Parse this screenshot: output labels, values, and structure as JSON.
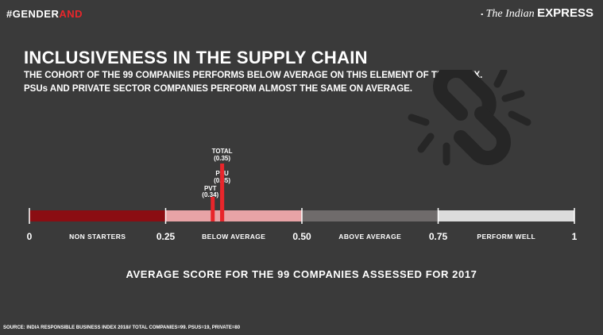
{
  "header": {
    "hashtag_white": "#GENDER",
    "hashtag_red": "AND",
    "brand_prefix": "The",
    "brand_italic": "The Indian",
    "brand_bold": "EXPRESS"
  },
  "title": "INCLUSIVENESS IN THE SUPPLY CHAIN",
  "subtitle_line1": "THE COHORT OF THE 99 COMPANIES PERFORMS BELOW AVERAGE ON THIS ELEMENT OF THE INDEX.",
  "subtitle_line2": "PSUs AND PRIVATE SECTOR COMPANIES PERFORM ALMOST THE SAME ON AVERAGE.",
  "icon": "broken-chain-link-icon",
  "chart_data": {
    "type": "bar",
    "xlim": [
      0,
      1
    ],
    "segments": [
      {
        "from": 0,
        "to": 0.25,
        "label": "NON STARTERS",
        "color": "#8b0d12"
      },
      {
        "from": 0.25,
        "to": 0.5,
        "label": "BELOW AVERAGE",
        "color": "#e8a3a6"
      },
      {
        "from": 0.5,
        "to": 0.75,
        "label": "ABOVE AVERAGE",
        "color": "#6f6b6b"
      },
      {
        "from": 0.75,
        "to": 1,
        "label": "PERFORM WELL",
        "color": "#dcdcdc"
      }
    ],
    "ticks": [
      {
        "value": 0,
        "label": "0"
      },
      {
        "value": 0.25,
        "label": "0.25"
      },
      {
        "value": 0.5,
        "label": "0.50"
      },
      {
        "value": 0.75,
        "label": "0.75"
      },
      {
        "value": 1,
        "label": "1"
      }
    ],
    "markers": [
      {
        "name": "PVT",
        "value": 0.34,
        "value_label": "(0.34)",
        "level": 0
      },
      {
        "name": "PSU",
        "value": 0.35,
        "value_label": "(0.35)",
        "level": 1
      },
      {
        "name": "TOTAL",
        "value": 0.35,
        "value_label": "(0.35)",
        "level": 2
      }
    ],
    "marker_color": "#e8262b"
  },
  "caption": "AVERAGE SCORE FOR THE 99 COMPANIES ASSESSED FOR 2017",
  "source": "SOURCE: INDIA RESPONSIBLE BUSINESS INDEX 2018// TOTAL COMPANIES=99. PSUS=19, PRIVATE=80"
}
